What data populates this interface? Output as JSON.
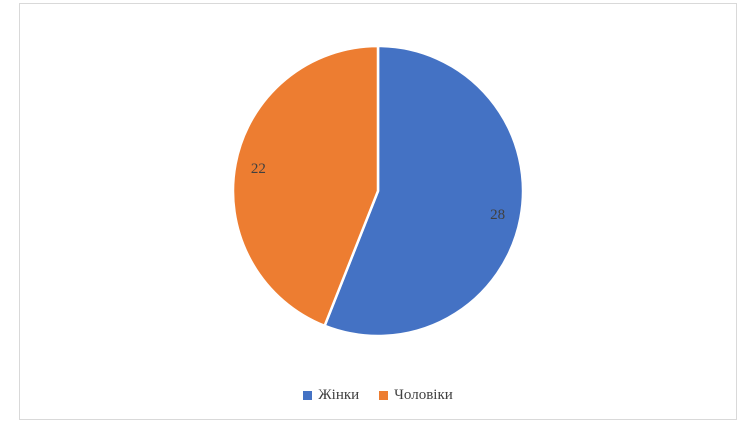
{
  "chart_data": {
    "type": "pie",
    "title": "",
    "categories": [
      "Жінки",
      "Чоловіки"
    ],
    "values": [
      28,
      22
    ],
    "data_labels": [
      "28",
      "22"
    ],
    "colors": [
      "#4472C4",
      "#ED7D31"
    ],
    "start_angle_deg": 0,
    "direction": "clockwise",
    "slice_border_color": "#FFFFFF",
    "data_label_color": "#404040",
    "legend": {
      "position": "bottom",
      "entries": [
        "Жінки",
        "Чоловіки"
      ]
    }
  },
  "frame": {
    "background": "#FFFFFF",
    "border_color": "#D9D9D9"
  }
}
